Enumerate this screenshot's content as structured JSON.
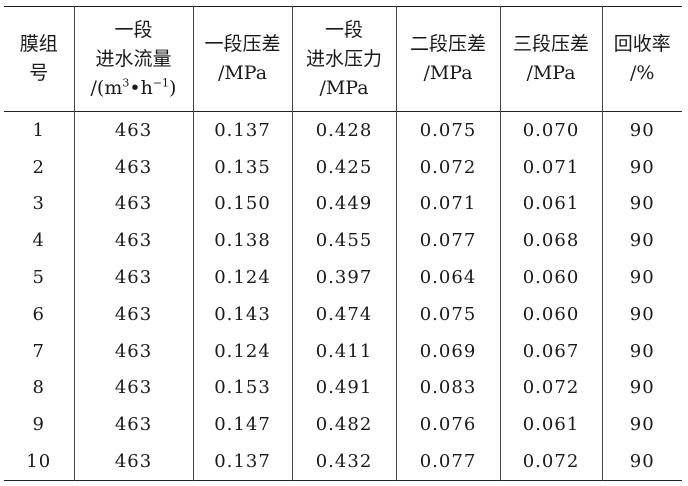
{
  "headers": [
    {
      "lines": [
        "膜组",
        "号"
      ]
    },
    {
      "lines": [
        "一段",
        "进水流量"
      ],
      "unit_prefix": "/(m",
      "unit_sup1": "3",
      "unit_mid": "•h",
      "unit_sup2": "−1",
      "unit_suffix": ")"
    },
    {
      "lines": [
        "一段压差",
        "/MPa"
      ]
    },
    {
      "lines": [
        "一段",
        "进水压力",
        "/MPa"
      ]
    },
    {
      "lines": [
        "二段压差",
        "/MPa"
      ]
    },
    {
      "lines": [
        "三段压差",
        "/MPa"
      ]
    },
    {
      "lines": [
        "回收率",
        "/%"
      ]
    }
  ],
  "rows": [
    [
      "1",
      "463",
      "0.137",
      "0.428",
      "0.075",
      "0.070",
      "90"
    ],
    [
      "2",
      "463",
      "0.135",
      "0.425",
      "0.072",
      "0.071",
      "90"
    ],
    [
      "3",
      "463",
      "0.150",
      "0.449",
      "0.071",
      "0.061",
      "90"
    ],
    [
      "4",
      "463",
      "0.138",
      "0.455",
      "0.077",
      "0.068",
      "90"
    ],
    [
      "5",
      "463",
      "0.124",
      "0.397",
      "0.064",
      "0.060",
      "90"
    ],
    [
      "6",
      "463",
      "0.143",
      "0.474",
      "0.075",
      "0.060",
      "90"
    ],
    [
      "7",
      "463",
      "0.124",
      "0.411",
      "0.069",
      "0.067",
      "90"
    ],
    [
      "8",
      "463",
      "0.153",
      "0.491",
      "0.083",
      "0.072",
      "90"
    ],
    [
      "9",
      "463",
      "0.147",
      "0.482",
      "0.076",
      "0.061",
      "90"
    ],
    [
      "10",
      "463",
      "0.137",
      "0.432",
      "0.077",
      "0.072",
      "90"
    ]
  ]
}
